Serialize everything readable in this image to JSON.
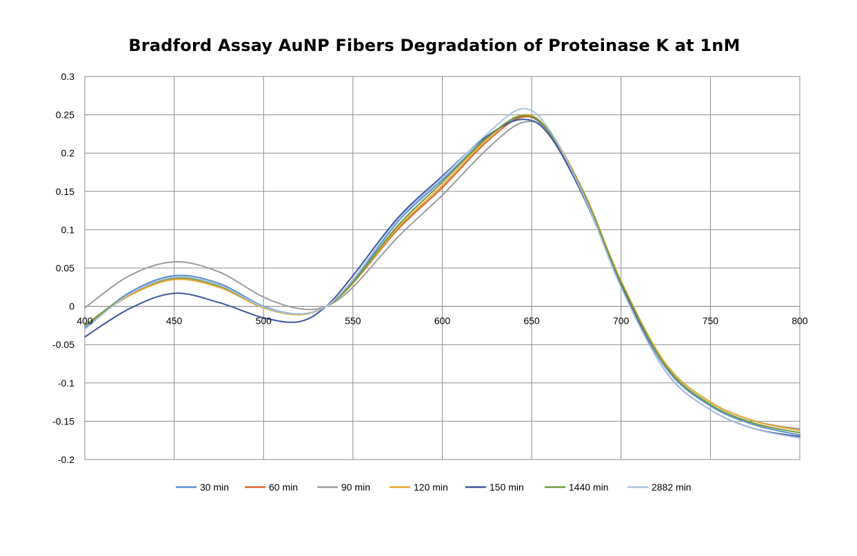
{
  "chart_data": {
    "type": "line",
    "title": "Bradford Assay AuNP Fibers Degradation of Proteinase  K at 1nM",
    "xlabel": "",
    "ylabel": "",
    "xlim": [
      400,
      800
    ],
    "ylim": [
      -0.2,
      0.3
    ],
    "x_ticks": [
      400,
      450,
      500,
      550,
      600,
      650,
      700,
      750,
      800
    ],
    "x_tick_labels": [
      "400",
      "450",
      "500",
      "550",
      "600",
      "650",
      "700",
      "750",
      "800"
    ],
    "y_ticks": [
      0.3,
      0.25,
      0.2,
      0.15,
      0.1,
      0.05,
      0,
      -0.05,
      -0.1,
      -0.15,
      -0.2
    ],
    "y_tick_labels": [
      "0.3",
      "0.25",
      "0.2",
      "0.15",
      "0.1",
      "0.05",
      "0",
      "-0.05",
      "-0.1",
      "-0.15",
      "-0.2"
    ],
    "grid": true,
    "legend_position": "bottom",
    "x": [
      400,
      425,
      450,
      475,
      500,
      520,
      535,
      550,
      575,
      600,
      625,
      645,
      660,
      680,
      700,
      725,
      750,
      775,
      800
    ],
    "series": [
      {
        "name": "30 min",
        "color": "#5b8fc9",
        "values": [
          -0.028,
          0.018,
          0.04,
          0.03,
          0.0,
          -0.01,
          0.0,
          0.032,
          0.11,
          0.165,
          0.22,
          0.248,
          0.225,
          0.14,
          0.03,
          -0.08,
          -0.13,
          -0.155,
          -0.168
        ]
      },
      {
        "name": "60 min",
        "color": "#d9602a",
        "values": [
          -0.025,
          0.014,
          0.035,
          0.025,
          -0.002,
          -0.01,
          0.0,
          0.03,
          0.1,
          0.155,
          0.215,
          0.247,
          0.228,
          0.145,
          0.033,
          -0.075,
          -0.125,
          -0.15,
          -0.162
        ]
      },
      {
        "name": "90 min",
        "color": "#9b9b9b",
        "values": [
          -0.002,
          0.04,
          0.058,
          0.045,
          0.012,
          -0.003,
          0.0,
          0.025,
          0.09,
          0.145,
          0.205,
          0.24,
          0.225,
          0.142,
          0.032,
          -0.075,
          -0.125,
          -0.15,
          -0.16
        ]
      },
      {
        "name": "120 min",
        "color": "#e5a82e",
        "values": [
          -0.025,
          0.014,
          0.035,
          0.025,
          -0.002,
          -0.011,
          0.0,
          0.03,
          0.102,
          0.158,
          0.218,
          0.25,
          0.228,
          0.145,
          0.033,
          -0.075,
          -0.125,
          -0.15,
          -0.162
        ]
      },
      {
        "name": "150 min",
        "color": "#3e559e",
        "values": [
          -0.04,
          -0.003,
          0.017,
          0.005,
          -0.015,
          -0.02,
          0.0,
          0.04,
          0.115,
          0.17,
          0.222,
          0.244,
          0.223,
          0.138,
          0.028,
          -0.085,
          -0.135,
          -0.16,
          -0.17
        ]
      },
      {
        "name": "1440 min",
        "color": "#6e9a3c",
        "values": [
          -0.025,
          0.016,
          0.037,
          0.027,
          -0.001,
          -0.01,
          0.0,
          0.031,
          0.105,
          0.162,
          0.22,
          0.249,
          0.227,
          0.143,
          0.031,
          -0.078,
          -0.128,
          -0.153,
          -0.165
        ]
      },
      {
        "name": "2882 min",
        "color": "#a9c1e4",
        "values": [
          -0.03,
          0.016,
          0.038,
          0.028,
          -0.001,
          -0.01,
          0.0,
          0.035,
          0.112,
          0.168,
          0.225,
          0.258,
          0.23,
          0.14,
          0.025,
          -0.085,
          -0.135,
          -0.16,
          -0.172
        ]
      }
    ]
  }
}
